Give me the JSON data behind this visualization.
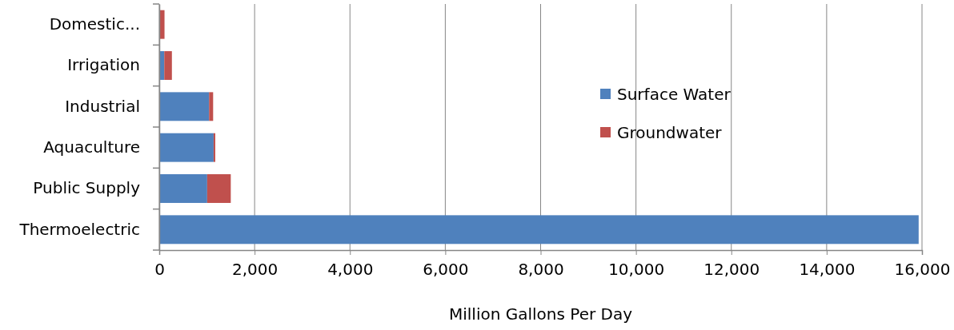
{
  "chart_data": {
    "type": "bar",
    "orientation": "horizontal",
    "stacked": true,
    "xlabel": "Million Gallons Per Day",
    "categories": [
      "Domestic...",
      "Irrigation",
      "Industrial",
      "Aquaculture",
      "Public Supply",
      "Thermoelectric"
    ],
    "series": [
      {
        "name": "Surface Water",
        "color": "#4f81bd",
        "values": [
          0,
          105,
          1045,
          1140,
          1005,
          15930
        ]
      },
      {
        "name": "Groundwater",
        "color": "#c0504d",
        "values": [
          110,
          160,
          85,
          35,
          495,
          0
        ]
      }
    ],
    "xlim": [
      0,
      16000
    ],
    "xticks": [
      {
        "value": 0,
        "label": "0"
      },
      {
        "value": 2000,
        "label": "2,000"
      },
      {
        "value": 4000,
        "label": "4,000"
      },
      {
        "value": 6000,
        "label": "6,000"
      },
      {
        "value": 8000,
        "label": "8,000"
      },
      {
        "value": 10000,
        "label": "10,000"
      },
      {
        "value": 12000,
        "label": "12,000"
      },
      {
        "value": 14000,
        "label": "14,000"
      },
      {
        "value": 16000,
        "label": "16,000"
      }
    ],
    "grid": "x",
    "legend": "right"
  }
}
